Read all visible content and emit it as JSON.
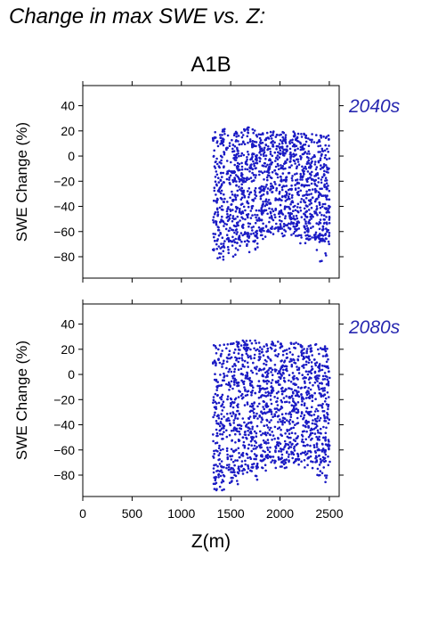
{
  "title": "Change in max SWE vs. Z:",
  "scenario": "A1B",
  "colors": {
    "points": "#1b1bc4",
    "period_label": "#2828b0",
    "axes": "#000000"
  },
  "chart_data": [
    {
      "type": "scatter",
      "panel_label": "2040s",
      "xlabel": "Z(m)",
      "ylabel": "SWE Change (%)",
      "xlim": [
        0,
        2600
      ],
      "ylim": [
        -97,
        56
      ],
      "xticks": [
        0,
        500,
        1000,
        1500,
        2000,
        2500
      ],
      "yticks": [
        40,
        20,
        0,
        -20,
        -40,
        -60,
        -80
      ],
      "show_xtick_labels": false,
      "grid": false,
      "point_extent": {
        "x": [
          1320,
          2505
        ],
        "y": [
          -85,
          24
        ]
      },
      "band_gaps_x": [
        1450,
        1600,
        1780,
        1940,
        2080,
        2200,
        2340
      ],
      "bands": [
        {
          "x": [
            1320,
            1440
          ],
          "y_min": -75,
          "y_max": 22,
          "sparse_to": -84
        },
        {
          "x": [
            1455,
            1595
          ],
          "y_min": -70,
          "y_max": 21,
          "sparse_to": -80
        },
        {
          "x": [
            1605,
            1775
          ],
          "y_min": -65,
          "y_max": 24,
          "sparse_to": -77
        },
        {
          "x": [
            1785,
            1935
          ],
          "y_min": -60,
          "y_max": 20,
          "sparse_to": -66
        },
        {
          "x": [
            1945,
            2075
          ],
          "y_min": -60,
          "y_max": 20,
          "sparse_to": -64
        },
        {
          "x": [
            2085,
            2195
          ],
          "y_min": -60,
          "y_max": 20,
          "sparse_to": -65
        },
        {
          "x": [
            2205,
            2335
          ],
          "y_min": -65,
          "y_max": 18,
          "sparse_to": -70
        },
        {
          "x": [
            2345,
            2505
          ],
          "y_min": -68,
          "y_max": 17,
          "sparse_to": -84
        }
      ]
    },
    {
      "type": "scatter",
      "panel_label": "2080s",
      "xlabel": "Z(m)",
      "ylabel": "SWE Change (%)",
      "xlim": [
        0,
        2600
      ],
      "ylim": [
        -97,
        56
      ],
      "xticks": [
        0,
        500,
        1000,
        1500,
        2000,
        2500
      ],
      "yticks": [
        40,
        20,
        0,
        -20,
        -40,
        -60,
        -80
      ],
      "show_xtick_labels": true,
      "grid": false,
      "point_extent": {
        "x": [
          1320,
          2505
        ],
        "y": [
          -92,
          27
        ]
      },
      "band_gaps_x": [
        1450,
        1600,
        1780,
        1940,
        2080,
        2200,
        2340
      ],
      "bands": [
        {
          "x": [
            1320,
            1440
          ],
          "y_min": -85,
          "y_max": 26,
          "sparse_to": -92
        },
        {
          "x": [
            1455,
            1595
          ],
          "y_min": -80,
          "y_max": 26,
          "sparse_to": -88
        },
        {
          "x": [
            1605,
            1775
          ],
          "y_min": -75,
          "y_max": 27,
          "sparse_to": -84
        },
        {
          "x": [
            1785,
            1935
          ],
          "y_min": -70,
          "y_max": 26,
          "sparse_to": -77
        },
        {
          "x": [
            1945,
            2075
          ],
          "y_min": -70,
          "y_max": 26,
          "sparse_to": -75
        },
        {
          "x": [
            2085,
            2195
          ],
          "y_min": -68,
          "y_max": 26,
          "sparse_to": -72
        },
        {
          "x": [
            2205,
            2335
          ],
          "y_min": -68,
          "y_max": 25,
          "sparse_to": -76
        },
        {
          "x": [
            2345,
            2505
          ],
          "y_min": -70,
          "y_max": 24,
          "sparse_to": -88
        }
      ]
    }
  ]
}
